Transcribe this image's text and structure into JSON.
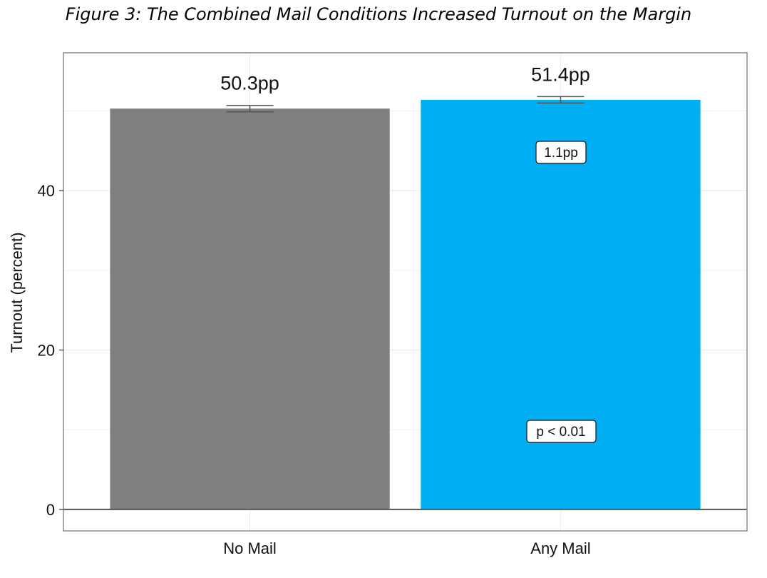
{
  "figure_title": "Figure 3: The Combined Mail Conditions Increased Turnout on the Margin",
  "colors": {
    "no_mail": "#7f7f7f",
    "any_mail": "#02aef2"
  },
  "chart_data": {
    "type": "bar",
    "categories": [
      "No Mail",
      "Any Mail"
    ],
    "values": [
      50.3,
      51.4
    ],
    "error_bars": [
      [
        49.9,
        50.7
      ],
      [
        51.0,
        51.8
      ]
    ],
    "value_labels": [
      "50.3pp",
      "51.4pp"
    ],
    "annotations": {
      "difference": "1.1pp",
      "p_value": "p < 0.01"
    },
    "ylabel": "Turnout (percent)",
    "yticks": [
      0,
      20,
      40
    ],
    "ylim": [
      -2.7,
      57.3
    ],
    "grid": true
  }
}
